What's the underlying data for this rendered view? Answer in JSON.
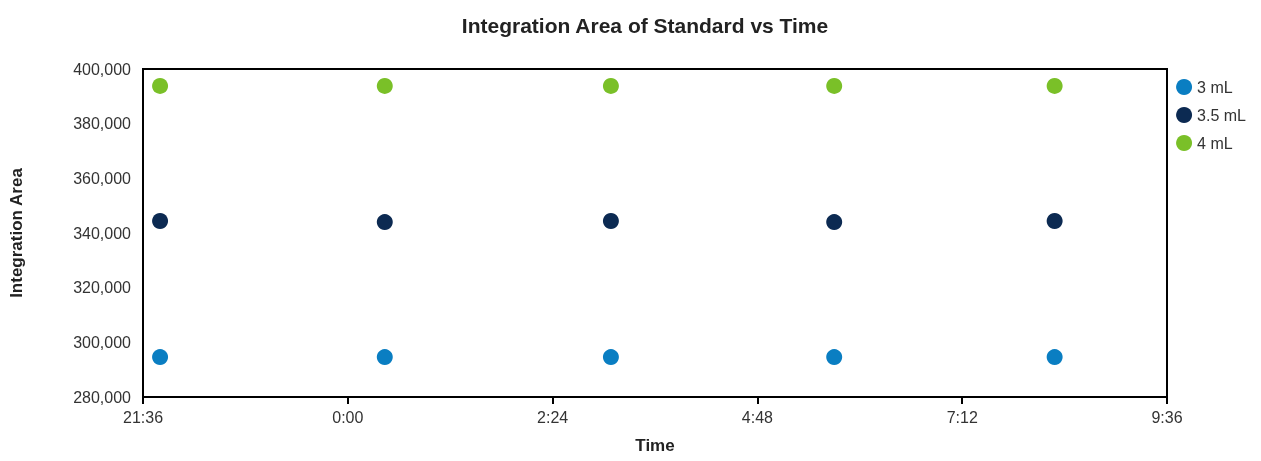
{
  "chart_data": {
    "type": "scatter",
    "title": "Integration Area of Standard vs Time",
    "xlabel": "Time",
    "ylabel": "Integration Area",
    "x": [
      "--01-01T21:48",
      "--01-02T00:26",
      "--01-02T03:05",
      "--01-02T05:42",
      "--01-02T08:17"
    ],
    "series": [
      {
        "name": "3 mL",
        "color": "#0a7ec2",
        "values": [
          294600,
          294600,
          294600,
          294600,
          294600
        ]
      },
      {
        "name": "3.5 mL",
        "color": "#0c2a52",
        "values": [
          344400,
          344000,
          344400,
          344000,
          344400
        ]
      },
      {
        "name": "4 mL",
        "color": "#7ac028",
        "values": [
          393800,
          393800,
          393800,
          393800,
          393800
        ]
      }
    ],
    "xlim": [
      "--01-01T21:36",
      "--01-02T09:36"
    ],
    "xticks": [
      {
        "value": "--01-01T21:36",
        "label": "21:36"
      },
      {
        "value": "--01-02T00:00",
        "label": "0:00"
      },
      {
        "value": "--01-02T02:24",
        "label": "2:24"
      },
      {
        "value": "--01-02T04:48",
        "label": "4:48"
      },
      {
        "value": "--01-02T07:12",
        "label": "7:12"
      },
      {
        "value": "--01-02T09:36",
        "label": "9:36"
      }
    ],
    "ylim": [
      280000,
      400000
    ],
    "yticks": [
      {
        "value": 280000,
        "label": "280,000"
      },
      {
        "value": 300000,
        "label": "300,000"
      },
      {
        "value": 320000,
        "label": "320,000"
      },
      {
        "value": 340000,
        "label": "340,000"
      },
      {
        "value": 360000,
        "label": "360,000"
      },
      {
        "value": 380000,
        "label": "380,000"
      },
      {
        "value": 400000,
        "label": "400,000"
      }
    ],
    "grid": false,
    "legend": "top right",
    "marker": "circle"
  }
}
